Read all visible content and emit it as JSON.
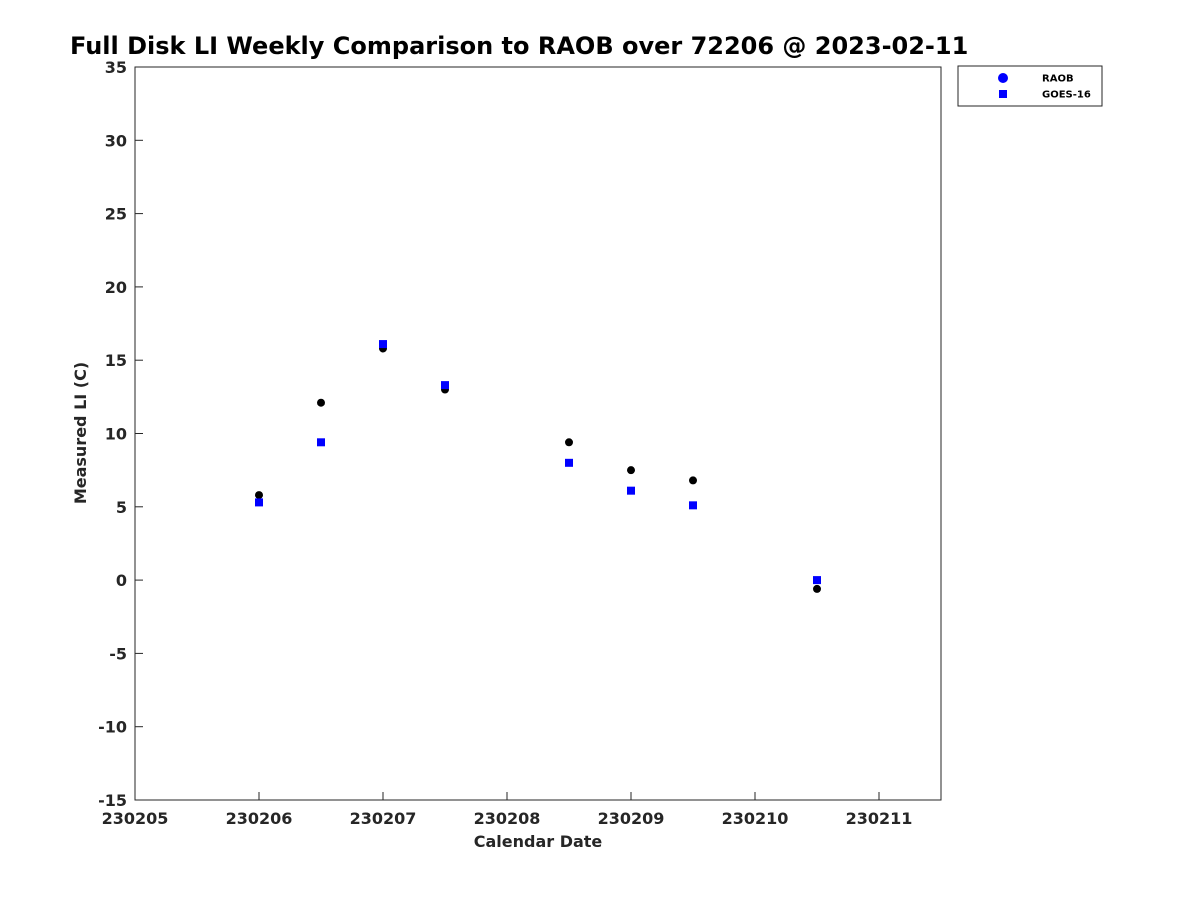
{
  "chart_data": {
    "type": "scatter",
    "title": "Full Disk LI Weekly Comparison to RAOB over 72206 @ 2023-02-11",
    "xlabel": "Calendar Date",
    "ylabel": "Measured LI (C)",
    "xlim": [
      230205,
      230211.5
    ],
    "ylim": [
      -15,
      35
    ],
    "xticks": [
      230205,
      230206,
      230207,
      230208,
      230209,
      230210,
      230211
    ],
    "xtick_labels": [
      "230205",
      "230206",
      "230207",
      "230208",
      "230209",
      "230210",
      "230211"
    ],
    "yticks": [
      35,
      30,
      25,
      20,
      15,
      10,
      5,
      0,
      -5,
      -10,
      -15
    ],
    "ytick_labels": [
      "35",
      "30",
      "25",
      "20",
      "15",
      "10",
      "5",
      "0",
      "-5",
      "-10",
      "-15"
    ],
    "grid": false,
    "legend_position": "top-right",
    "series": [
      {
        "name": "RAOB",
        "marker": "circle",
        "color": "#000000",
        "legend_color": "#0000ff",
        "x": [
          230206,
          230206.5,
          230207,
          230207.5,
          230208.5,
          230209,
          230209.5,
          230210.5
        ],
        "y": [
          5.8,
          12.1,
          15.8,
          13.0,
          9.4,
          7.5,
          6.8,
          -0.6
        ]
      },
      {
        "name": "GOES-16",
        "marker": "square",
        "color": "#0000ff",
        "legend_color": "#0000ff",
        "x": [
          230206,
          230206.5,
          230207,
          230207.5,
          230208.5,
          230209,
          230209.5,
          230210.5
        ],
        "y": [
          5.3,
          9.4,
          16.1,
          13.3,
          8.0,
          6.1,
          5.1,
          0.0
        ]
      }
    ]
  }
}
